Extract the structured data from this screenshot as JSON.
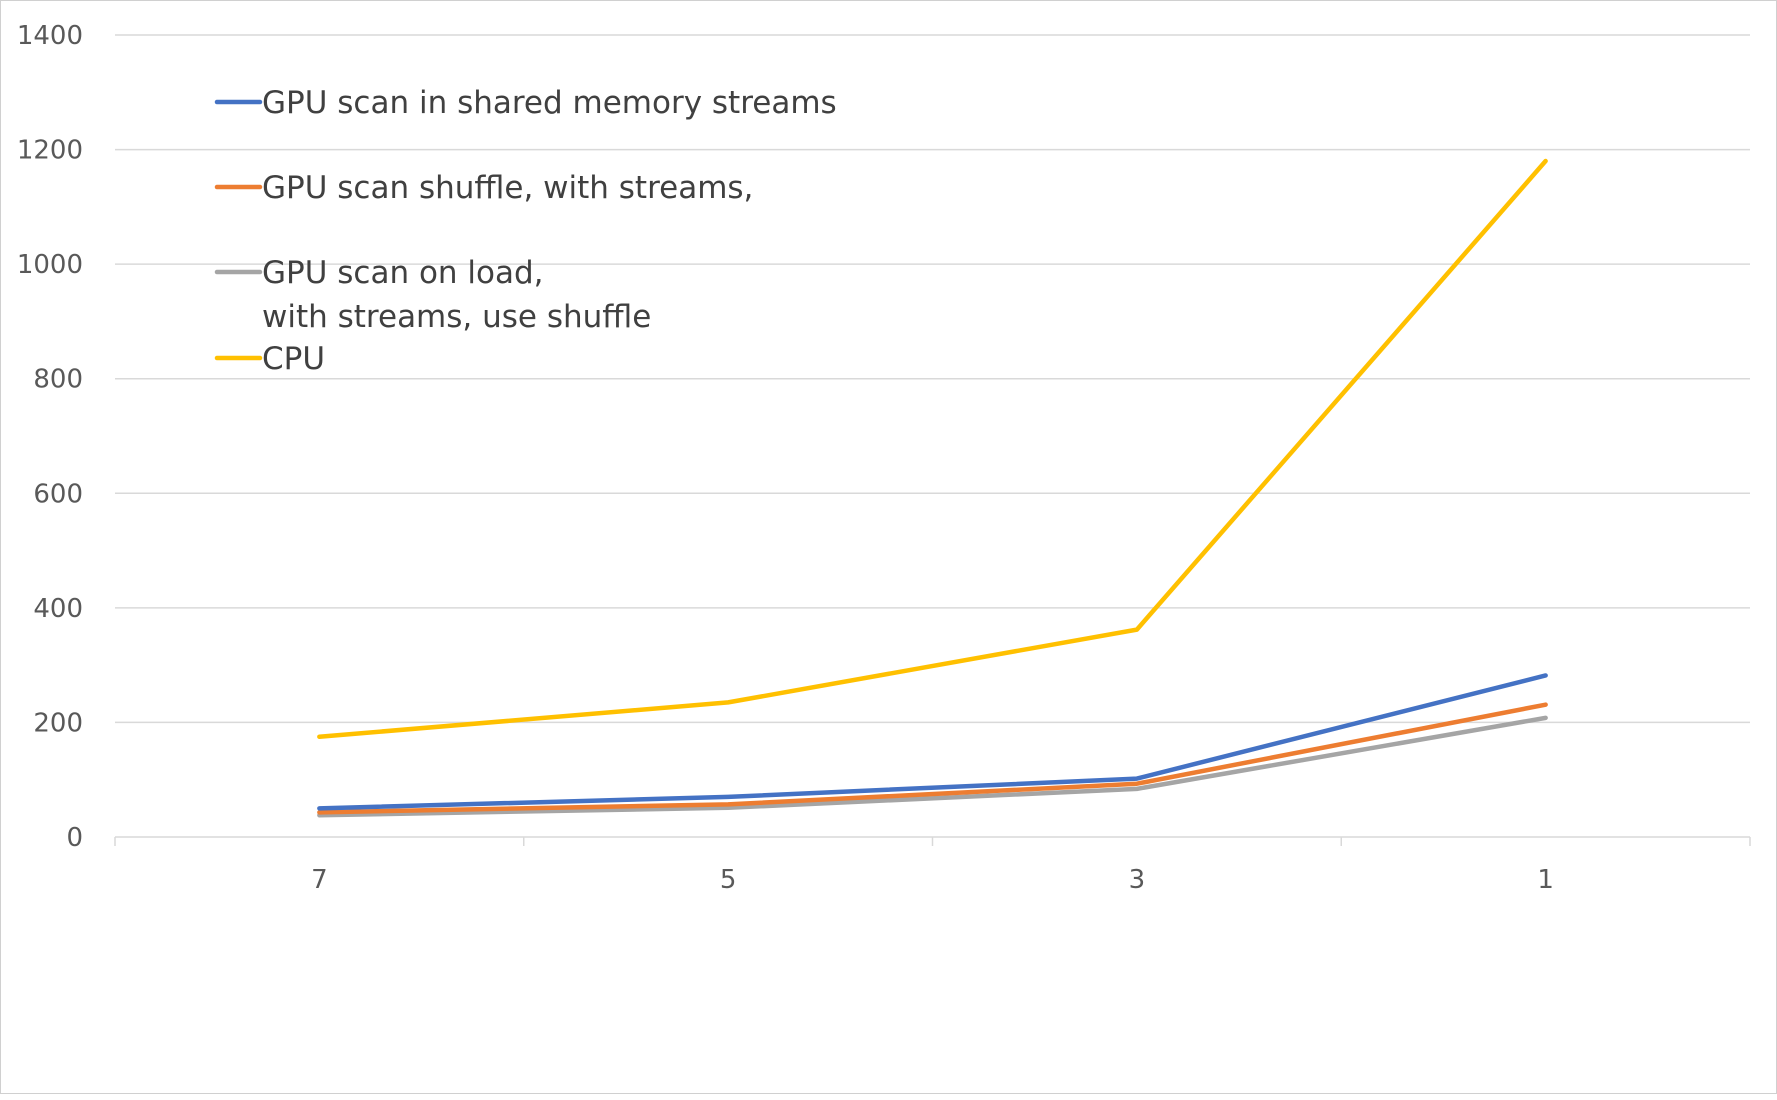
{
  "chart_data": {
    "type": "line",
    "title": "",
    "xlabel": "",
    "ylabel": "",
    "categories": [
      "7",
      "5",
      "3",
      "1"
    ],
    "ylim": [
      0,
      1400
    ],
    "yticks": [
      0,
      200,
      400,
      600,
      800,
      1000,
      1200,
      1400
    ],
    "grid": true,
    "legend_position": "top-left",
    "series": [
      {
        "name": "GPU scan in shared memory streams",
        "color": "#4472C4",
        "values": [
          50,
          70,
          102,
          282
        ]
      },
      {
        "name": "GPU scan shuffle, with streams,",
        "color": "#ED7D31",
        "values": [
          43,
          57,
          93,
          231
        ]
      },
      {
        "name": "GPU scan on load,\nwith streams, use shuffle",
        "color": "#A5A5A5",
        "values": [
          38,
          51,
          84,
          208
        ]
      },
      {
        "name": "CPU",
        "color": "#FFC000",
        "values": [
          175,
          235,
          362,
          1180
        ]
      }
    ]
  }
}
